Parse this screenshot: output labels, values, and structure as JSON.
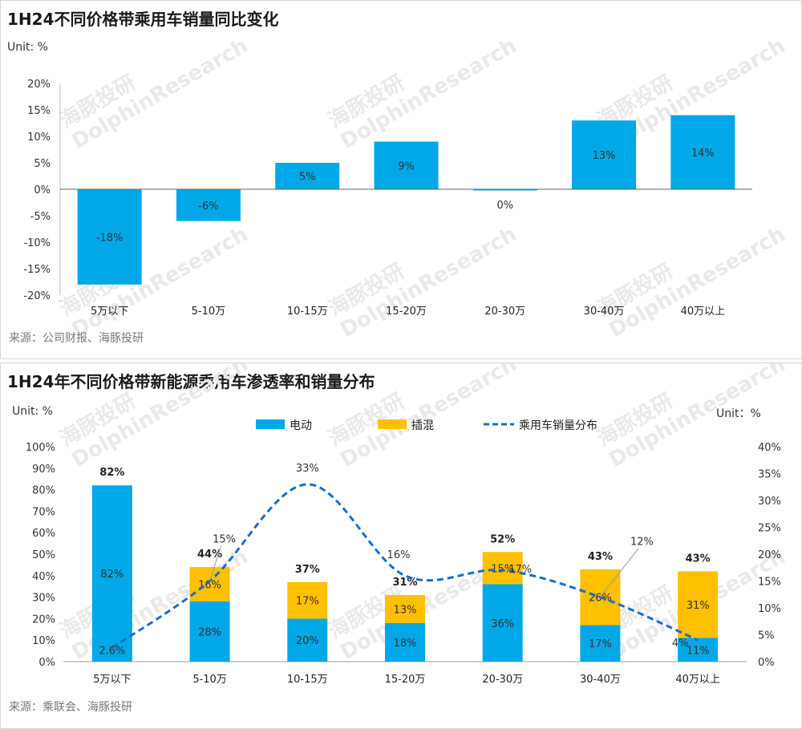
{
  "chart_data": [
    {
      "type": "bar",
      "title": "1H24不同价格带乘用车销量同比变化",
      "unit_label": "Unit: %",
      "source": "来源：公司财报、海豚投研",
      "categories": [
        "5万以下",
        "5-10万",
        "10-15万",
        "15-20万",
        "20-30万",
        "30-40万",
        "40万以上"
      ],
      "values": [
        -18,
        -6,
        5,
        9,
        0,
        13,
        14
      ],
      "data_labels": [
        "-18%",
        "-6%",
        "5%",
        "9%",
        "0%",
        "13%",
        "14%"
      ],
      "ylim": [
        -20,
        20
      ],
      "yticks": [
        "20%",
        "15%",
        "10%",
        "5%",
        "0%",
        "-5%",
        "-10%",
        "-15%",
        "-20%"
      ],
      "color": "#00a8e8"
    },
    {
      "type": "bar",
      "title": "1H24年不同价格带新能源乘用车渗透率和销量分布",
      "unit_left": "Unit: %",
      "unit_right": "Unit：%",
      "source": "来源：乘联会、海豚投研",
      "categories": [
        "5万以下",
        "5-10万",
        "10-15万",
        "15-20万",
        "20-30万",
        "30-40万",
        "40万以上"
      ],
      "legend": [
        "电动",
        "插混",
        "乘用车销量分布"
      ],
      "legend_position": "top",
      "series": [
        {
          "name": "电动",
          "type": "bar",
          "stack": "nev",
          "values": [
            82,
            28,
            20,
            18,
            36,
            17,
            11
          ],
          "labels": [
            "82%",
            "28%",
            "20%",
            "18%",
            "36%",
            "17%",
            "11%"
          ],
          "color": "#00a8e8"
        },
        {
          "name": "插混",
          "type": "bar",
          "stack": "nev",
          "values": [
            0,
            16,
            17,
            13,
            15,
            26,
            31
          ],
          "labels": [
            "",
            "16%",
            "17%",
            "13%",
            "15%",
            "26%",
            "31%"
          ],
          "color": "#ffc000"
        },
        {
          "name": "乘用车销量分布",
          "type": "line",
          "axis": "right",
          "dashed": true,
          "values": [
            2.6,
            15,
            33,
            16,
            17,
            12,
            4
          ],
          "labels": [
            "2.6%",
            "15%",
            "33%",
            "16%",
            "17%",
            "12%",
            "4%"
          ],
          "color": "#1a6fc4"
        }
      ],
      "totals": [
        "82%",
        "44%",
        "37%",
        "31%",
        "52%",
        "43%",
        "43%"
      ],
      "ylim_left": [
        0,
        100
      ],
      "ylim_right": [
        0,
        40
      ],
      "yticks_left": [
        "100%",
        "90%",
        "80%",
        "70%",
        "60%",
        "50%",
        "40%",
        "30%",
        "20%",
        "10%",
        "0%"
      ],
      "yticks_right": [
        "40%",
        "35%",
        "30%",
        "25%",
        "20%",
        "15%",
        "10%",
        "5%",
        "0%"
      ]
    }
  ],
  "watermark": {
    "cn": "海豚投研",
    "en": "DolphinResearch"
  }
}
